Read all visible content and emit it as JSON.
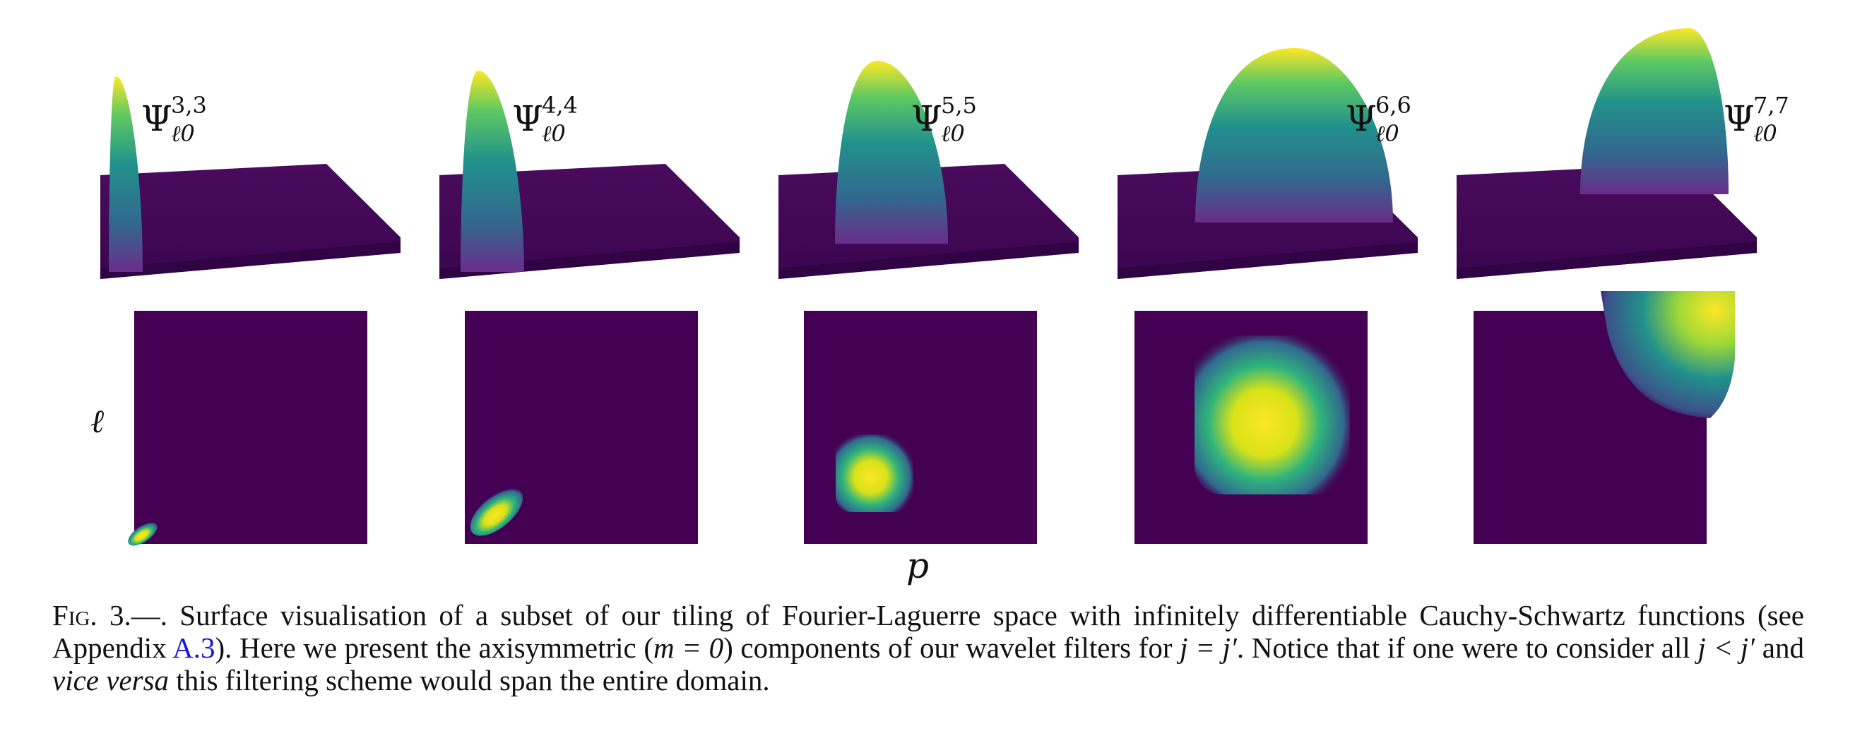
{
  "figure": {
    "panels": [
      {
        "label_base": "Ψ",
        "label_sup": "3,3",
        "label_sub": "ℓ0",
        "scale": 3
      },
      {
        "label_base": "Ψ",
        "label_sup": "4,4",
        "label_sub": "ℓ0",
        "scale": 4
      },
      {
        "label_base": "Ψ",
        "label_sup": "5,5",
        "label_sub": "ℓ0",
        "scale": 5
      },
      {
        "label_base": "Ψ",
        "label_sup": "6,6",
        "label_sub": "ℓ0",
        "scale": 6
      },
      {
        "label_base": "Ψ",
        "label_sup": "7,7",
        "label_sub": "ℓ0",
        "scale": 7
      }
    ],
    "y_axis_label": "ℓ",
    "x_axis_label": "p",
    "colors": {
      "viridis_dark": "#440154",
      "viridis_blue": "#31688e",
      "viridis_teal": "#21918c",
      "viridis_green": "#5ec962",
      "viridis_yellow": "#fde725"
    }
  },
  "caption": {
    "fig_label": "Fig. 3.",
    "dash": "—. ",
    "part1": "Surface visualisation of a subset of our tiling of Fourier-Laguerre space with infinitely differentiable Cauchy-Schwartz functions (see Appendix ",
    "link": "A.3",
    "part2": "). Here we present the axisymmetric (",
    "math_m": "m = 0",
    "part3": ") components of our wavelet filters for ",
    "math_jj": "j = j′",
    "part4": ". Notice that if one were to consider all ",
    "math_jlt": "j < j′",
    "part5": " and ",
    "vice_versa": "vice versa",
    "part6": " this filtering scheme would span the entire domain."
  }
}
